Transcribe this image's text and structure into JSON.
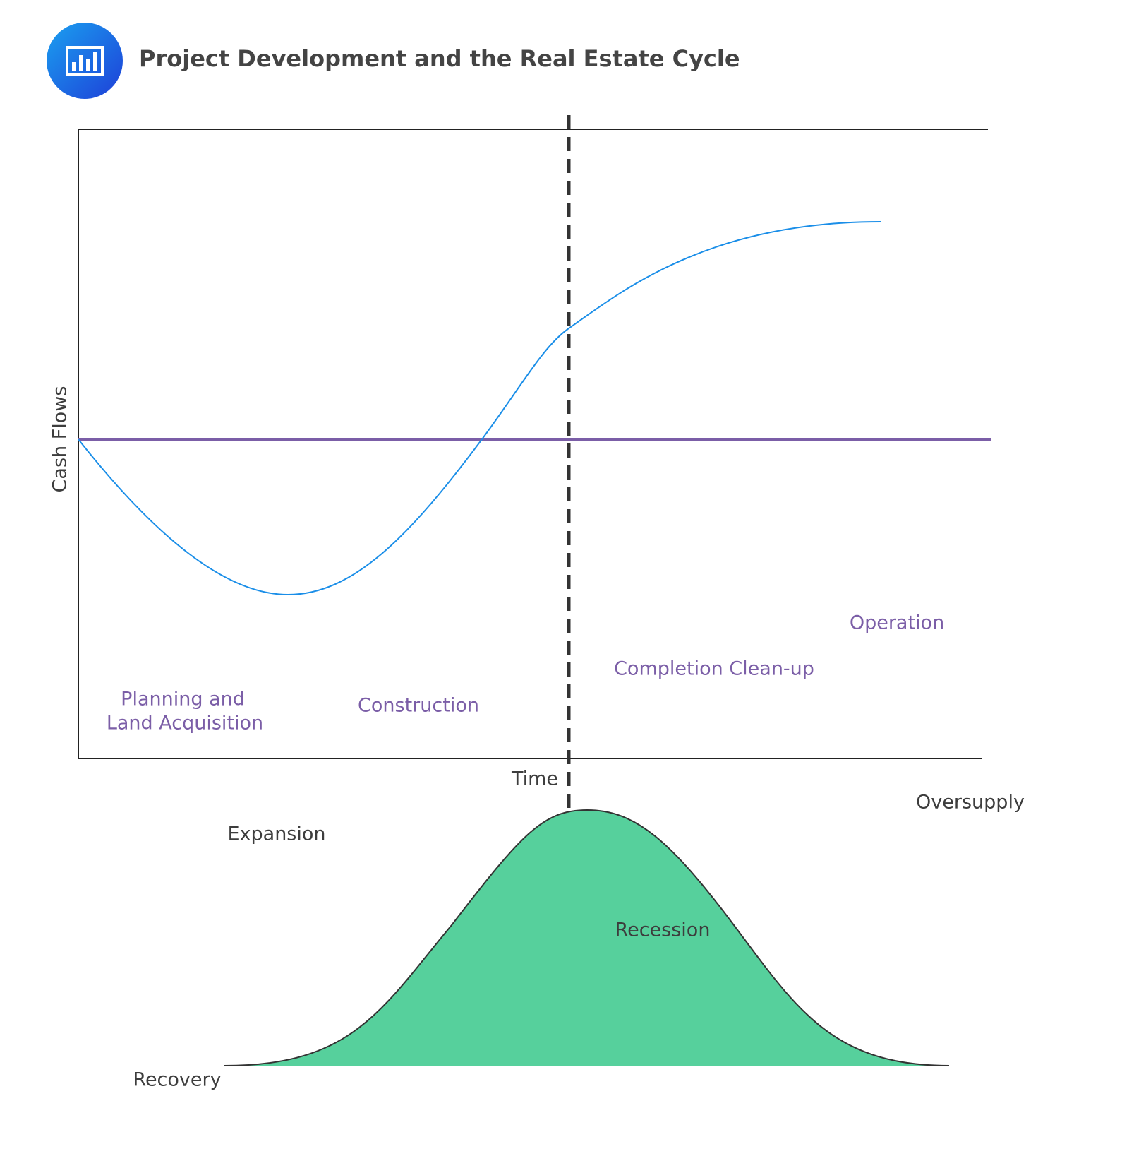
{
  "header": {
    "title": "Project Development and the Real Estate Cycle"
  },
  "axes": {
    "y_label": "Cash Flows",
    "x_label": "Time"
  },
  "phases": {
    "planning": [
      "Planning and",
      "Land Acquisition"
    ],
    "construction": "Construction",
    "completion": "Completion Clean-up",
    "operation": "Operation"
  },
  "cycle": {
    "expansion": "Expansion",
    "oversupply": "Oversupply",
    "recession": "Recession",
    "recovery": "Recovery"
  }
}
